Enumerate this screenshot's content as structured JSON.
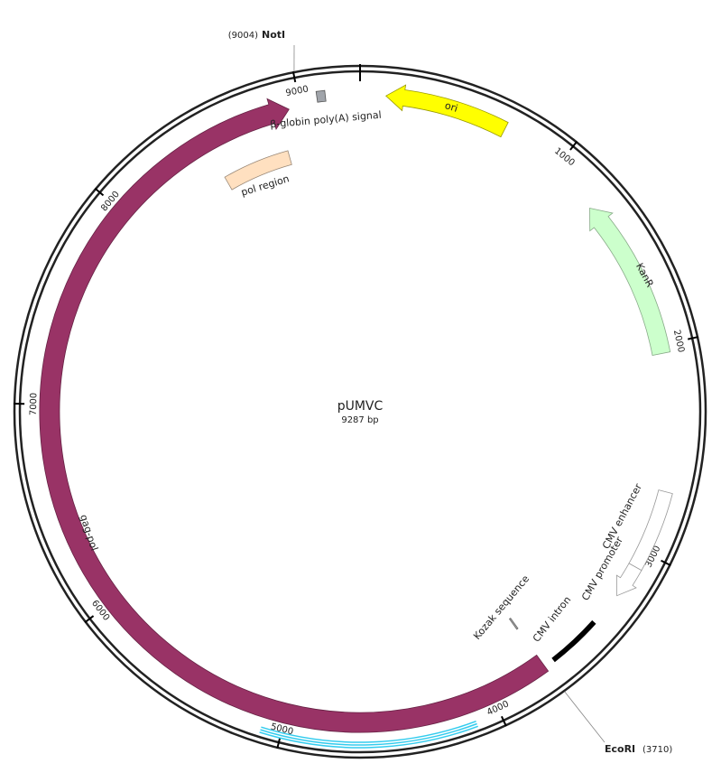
{
  "map": {
    "name": "pUMVC",
    "size": {
      "value": 9287,
      "label": "9287 bp"
    },
    "ticks": [
      1000,
      2000,
      3000,
      4000,
      5000,
      6000,
      7000,
      8000,
      9000
    ],
    "features": [
      {
        "label": "ori",
        "start": 121,
        "end": 700,
        "direction": "reverse",
        "fill": "#ffff00",
        "stroke": "#999900"
      },
      {
        "label": "KanR",
        "start": 1250,
        "end": 2040,
        "direction": "reverse",
        "fill": "#ccffcc",
        "stroke": "#88aa88"
      },
      {
        "label": "CMV enhancer",
        "start": 2700,
        "end": 3080,
        "direction": "none",
        "fill": "#ffffff",
        "stroke": "#999999"
      },
      {
        "label": "CMV promoter",
        "start": 3080,
        "end": 3240,
        "direction": "forward",
        "fill": "#ffffff",
        "stroke": "#999999"
      },
      {
        "label": "CMV intron",
        "start": 3405,
        "end": 3664,
        "direction": "none",
        "fill": "#000000",
        "stroke": "#000000"
      },
      {
        "label": "Kozak sequence",
        "start": 3712,
        "end": 3720,
        "direction": "none",
        "fill": "#aaaaaa",
        "stroke": "#666666"
      },
      {
        "label": "gag-pol",
        "start": 3715,
        "end": 8946,
        "direction": "forward",
        "fill": "#993366",
        "stroke": "#662244"
      },
      {
        "start": 4113,
        "end": 5093,
        "direction": "none",
        "fill": "none",
        "stroke": "#33ccee"
      },
      {
        "label": "pol region",
        "start": 8513,
        "end": 8888,
        "direction": "none",
        "fill": "#ffe0c0",
        "stroke": "#998877"
      },
      {
        "label": "β-globin poly(A) signal",
        "start": 9085,
        "end": 9125,
        "direction": "none",
        "fill": "#a0a4aa",
        "stroke": "#555555"
      }
    ],
    "sites": [
      {
        "name": "NotI",
        "position": {
          "value": 9004,
          "label": "(9004)"
        }
      },
      {
        "name": "EcoRI",
        "position": {
          "value": 3710,
          "label": "(3710)"
        }
      }
    ]
  }
}
